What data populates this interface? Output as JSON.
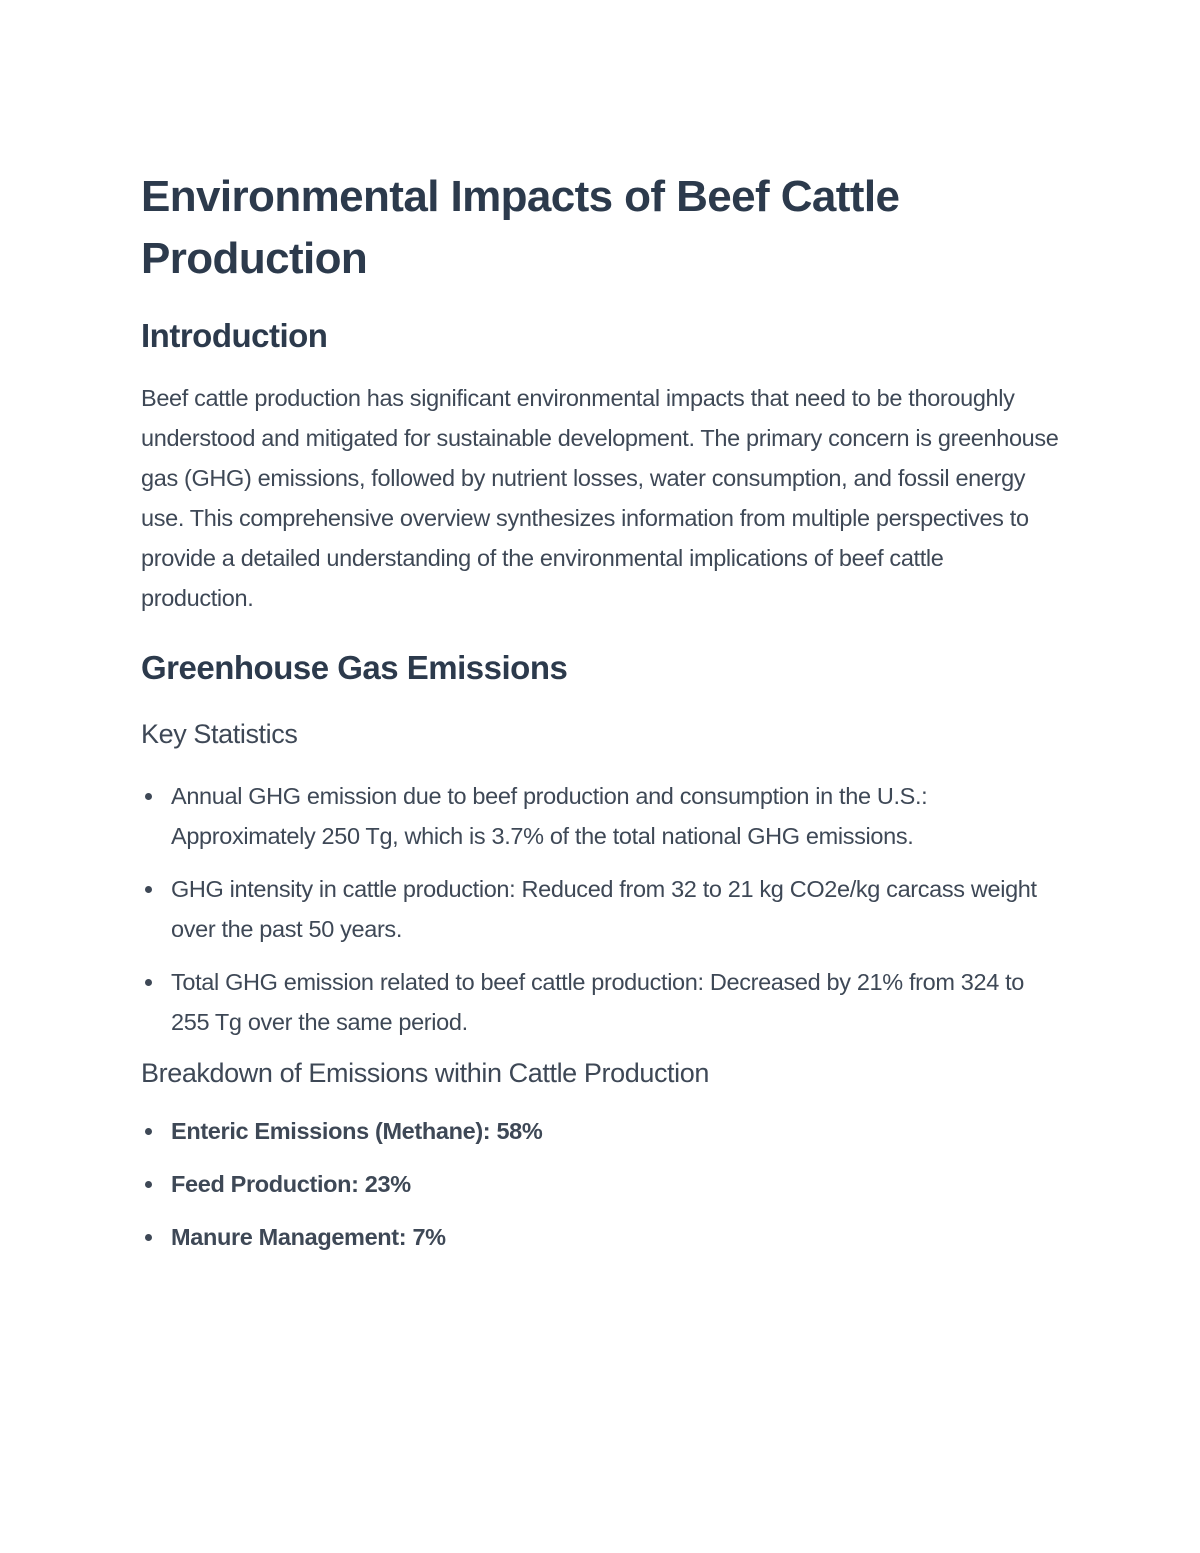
{
  "document": {
    "title": "Environmental Impacts of Beef Cattle Production",
    "sections": {
      "introduction": {
        "heading": "Introduction",
        "paragraph": "Beef cattle production has significant environmental impacts that need to be thoroughly understood and mitigated for sustainable development. The primary concern is greenhouse gas (GHG) emissions, followed by nutrient losses, water consumption, and fossil energy use. This comprehensive overview synthesizes information from multiple perspectives to provide a detailed understanding of the environmental implications of beef cattle production."
      },
      "ghg": {
        "heading": "Greenhouse Gas Emissions",
        "key_statistics": {
          "heading": "Key Statistics",
          "items": [
            "Annual GHG emission due to beef production and consumption in the U.S.: Approximately 250 Tg, which is 3.7% of the total national GHG emissions.",
            "GHG intensity in cattle production: Reduced from 32 to 21 kg CO2e/kg carcass weight over the past 50 years.",
            "Total GHG emission related to beef cattle production: Decreased by 21% from 324 to 255 Tg over the same period."
          ]
        },
        "breakdown": {
          "heading": "Breakdown of Emissions within Cattle Production",
          "items": [
            "Enteric Emissions (Methane): 58%",
            "Feed Production: 23%",
            "Manure Management: 7%"
          ]
        }
      }
    }
  }
}
